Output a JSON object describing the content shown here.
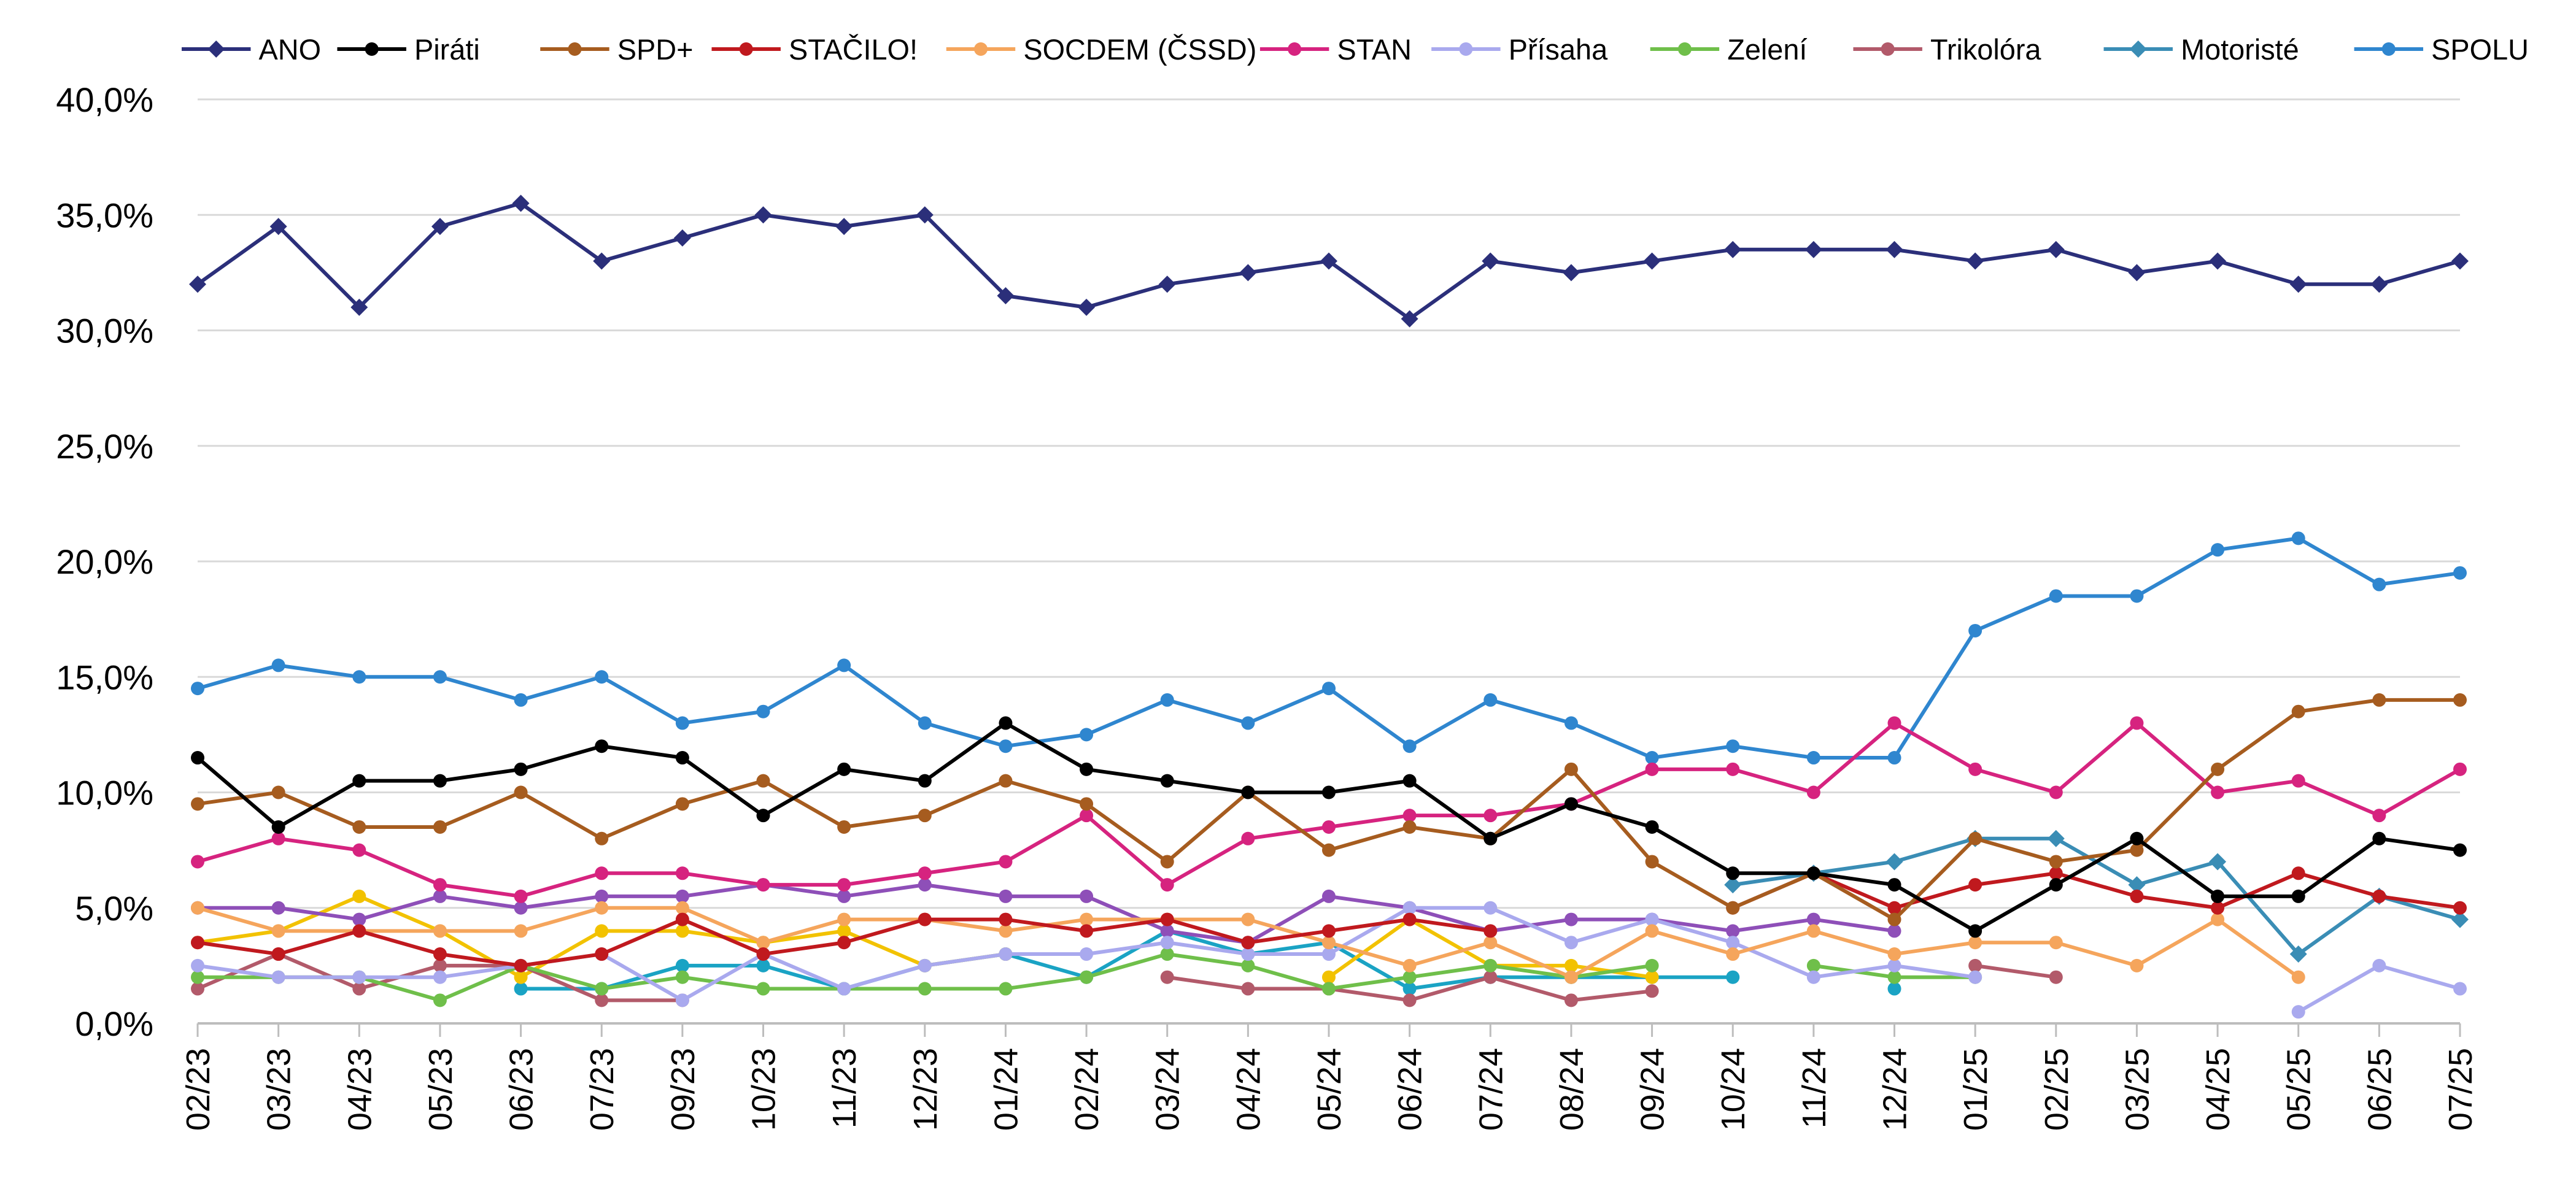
{
  "chart_data": {
    "type": "line",
    "title": "",
    "xlabel": "",
    "ylabel": "",
    "ylim": [
      0,
      40
    ],
    "ytick_values": [
      0,
      5,
      10,
      15,
      20,
      25,
      30,
      35,
      40
    ],
    "ytick_labels": [
      "0,0%",
      "5,0%",
      "10,0%",
      "15,0%",
      "20,0%",
      "25,0%",
      "30,0%",
      "35,0%",
      "40,0%"
    ],
    "grid": "horizontal",
    "legend_position": "top",
    "categories": [
      "02/23",
      "03/23",
      "04/23",
      "05/23",
      "06/23",
      "07/23",
      "09/23",
      "10/23",
      "11/23",
      "12/23",
      "01/24",
      "02/24",
      "03/24",
      "04/24",
      "05/24",
      "06/24",
      "07/24",
      "08/24",
      "09/24",
      "10/24",
      "11/24",
      "12/24",
      "01/25",
      "02/25",
      "03/25",
      "04/25",
      "05/25",
      "06/25",
      "07/25"
    ],
    "series": [
      {
        "name": "ANO",
        "color": "#2b2f7a",
        "marker": "diamond",
        "in_legend": true,
        "values": [
          32,
          34.5,
          31,
          34.5,
          35.5,
          33,
          34,
          35,
          34.5,
          35,
          31.5,
          31,
          32,
          32.5,
          33,
          30.5,
          33,
          32.5,
          33,
          33.5,
          33.5,
          33.5,
          33,
          33.5,
          32.5,
          33,
          32,
          32,
          33
        ]
      },
      {
        "name": "Piráti",
        "color": "#000000",
        "marker": "circle",
        "in_legend": true,
        "values": [
          11.5,
          8.5,
          10.5,
          10.5,
          11,
          12,
          11.5,
          9,
          11,
          10.5,
          13,
          11,
          10.5,
          10,
          10,
          10.5,
          8,
          9.5,
          8.5,
          6.5,
          6.5,
          6,
          4,
          6,
          8,
          5.5,
          5.5,
          8,
          7.5
        ]
      },
      {
        "name": "SPD+",
        "color": "#a65c1f",
        "marker": "circle",
        "in_legend": true,
        "values": [
          9.5,
          10,
          8.5,
          8.5,
          10,
          8,
          9.5,
          10.5,
          8.5,
          9,
          10.5,
          9.5,
          7,
          10,
          7.5,
          8.5,
          8,
          11,
          7,
          5,
          6.5,
          4.5,
          8,
          7,
          7.5,
          11,
          13.5,
          14,
          14
        ]
      },
      {
        "name": "STAČILO!",
        "color": "#c0191e",
        "marker": "circle",
        "in_legend": true,
        "values": [
          3.5,
          3,
          4,
          3,
          2.5,
          3,
          4.5,
          3,
          3.5,
          4.5,
          4.5,
          4,
          4.5,
          3.5,
          4,
          4.5,
          4,
          null,
          null,
          5,
          6.5,
          5,
          6,
          6.5,
          5.5,
          5,
          6.5,
          5.5,
          5
        ]
      },
      {
        "name": "SOCDEM (ČSSD)",
        "color": "#f5a55c",
        "marker": "circle",
        "in_legend": true,
        "values": [
          5,
          4,
          4,
          4,
          4,
          5,
          5,
          3.5,
          4.5,
          4.5,
          4,
          4.5,
          4.5,
          4.5,
          3.5,
          2.5,
          3.5,
          2,
          4,
          3,
          4,
          3,
          3.5,
          3.5,
          2.5,
          4.5,
          2,
          null,
          null
        ]
      },
      {
        "name": "STAN",
        "color": "#d6237f",
        "marker": "circle",
        "in_legend": true,
        "values": [
          7,
          8,
          7.5,
          6,
          5.5,
          6.5,
          6.5,
          6,
          6,
          6.5,
          7,
          9,
          6,
          8,
          8.5,
          9,
          9,
          9.5,
          11,
          11,
          10,
          13,
          11,
          10,
          13,
          10,
          10.5,
          9,
          11
        ]
      },
      {
        "name": "Přísaha",
        "color": "#a9a9ee",
        "marker": "circle",
        "in_legend": true,
        "values": [
          2.5,
          2,
          2,
          2,
          2.5,
          3,
          1,
          3,
          1.5,
          2.5,
          3,
          3,
          3.5,
          3,
          3,
          5,
          5,
          3.5,
          4.5,
          3.5,
          2,
          2.5,
          2,
          null,
          null,
          null,
          0.5,
          2.5,
          1.5
        ]
      },
      {
        "name": "Zelení",
        "color": "#6fbf4a",
        "marker": "circle",
        "in_legend": true,
        "values": [
          2,
          2,
          2,
          1,
          2.5,
          1.5,
          2,
          1.5,
          1.5,
          1.5,
          1.5,
          2,
          3,
          2.5,
          1.5,
          2,
          2.5,
          2,
          2.5,
          null,
          2.5,
          2,
          2,
          null,
          null,
          null,
          null,
          null,
          null
        ]
      },
      {
        "name": "Trikolóra",
        "color": "#b25a6a",
        "marker": "circle",
        "in_legend": true,
        "values": [
          1.5,
          3,
          1.5,
          2.5,
          2.5,
          1,
          1,
          null,
          null,
          null,
          null,
          null,
          2,
          1.5,
          1.5,
          1,
          2,
          1,
          1.4,
          null,
          null,
          null,
          2.5,
          2,
          null,
          null,
          null,
          null,
          null
        ]
      },
      {
        "name": "Motoristé",
        "color": "#3a8db5",
        "marker": "diamond",
        "in_legend": true,
        "values": [
          null,
          null,
          null,
          null,
          null,
          null,
          null,
          null,
          null,
          null,
          null,
          null,
          null,
          null,
          null,
          null,
          null,
          null,
          null,
          6,
          6.5,
          7,
          8,
          8,
          6,
          7,
          3,
          5.5,
          4.5
        ]
      },
      {
        "name": "SPOLU",
        "color": "#2f86cf",
        "marker": "circle",
        "in_legend": true,
        "values": [
          14.5,
          15.5,
          15,
          15,
          14,
          15,
          13,
          13.5,
          15.5,
          13,
          12,
          12.5,
          14,
          13,
          14.5,
          12,
          14,
          13,
          11.5,
          12,
          11.5,
          11.5,
          17,
          18.5,
          18.5,
          20.5,
          21,
          19,
          19.5
        ]
      },
      {
        "name": "",
        "color": "#8e4fb8",
        "marker": "circle",
        "in_legend": false,
        "values": [
          5,
          5,
          4.5,
          5.5,
          5,
          5.5,
          5.5,
          6,
          5.5,
          6,
          5.5,
          5.5,
          4,
          3.5,
          5.5,
          5,
          4,
          4.5,
          4.5,
          4,
          4.5,
          4,
          null,
          null,
          null,
          null,
          null,
          null,
          null
        ]
      },
      {
        "name": "",
        "color": "#f2c200",
        "marker": "circle",
        "in_legend": false,
        "values": [
          3.5,
          4,
          5.5,
          4,
          2,
          4,
          4,
          3.5,
          4,
          2.5,
          3,
          null,
          null,
          null,
          2,
          4.5,
          2.5,
          2.5,
          2,
          null,
          null,
          null,
          null,
          null,
          null,
          null,
          null,
          null,
          null
        ]
      },
      {
        "name": "",
        "color": "#1aa3c4",
        "marker": "circle",
        "in_legend": false,
        "values": [
          null,
          null,
          null,
          null,
          1.5,
          1.5,
          2.5,
          2.5,
          1.5,
          2.5,
          3,
          2,
          4,
          3,
          3.5,
          1.5,
          2,
          2,
          2,
          2,
          null,
          1.5,
          null,
          null,
          null,
          null,
          null,
          null,
          null
        ]
      }
    ]
  }
}
